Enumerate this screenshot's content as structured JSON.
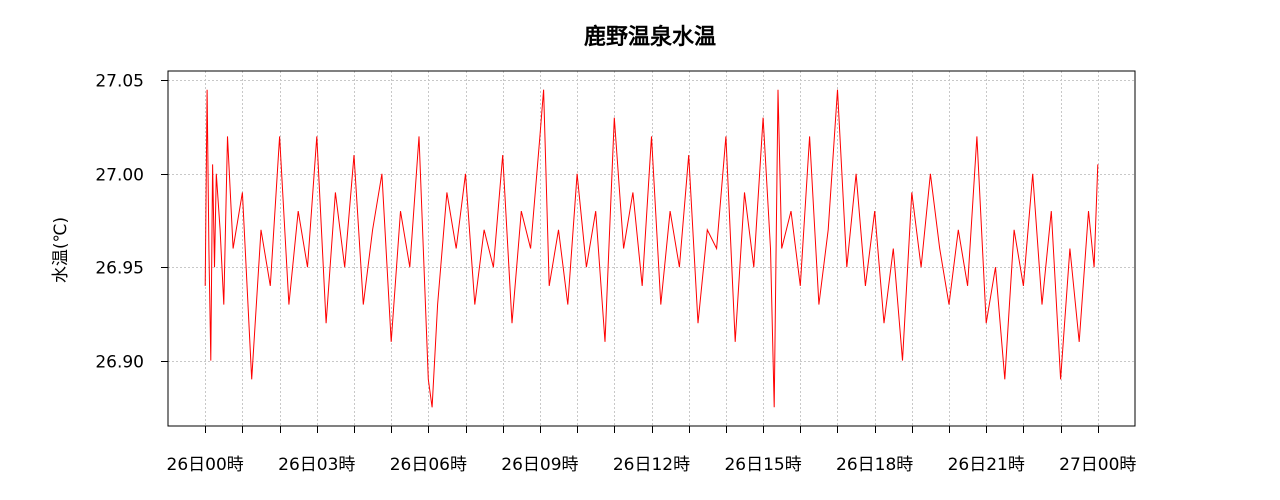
{
  "chart_data": {
    "type": "line",
    "title": "鹿野温泉水温",
    "xlabel": "",
    "ylabel": "水温(℃)",
    "ylim": [
      26.865,
      27.055
    ],
    "xlim_hours": [
      -1,
      25
    ],
    "y_ticks": [
      26.9,
      26.95,
      27.0,
      27.05
    ],
    "y_tick_labels": [
      "26.90",
      "26.95",
      "27.00",
      "27.05"
    ],
    "x_tick_hours": [
      0,
      3,
      6,
      9,
      12,
      15,
      18,
      21,
      24
    ],
    "x_tick_labels": [
      "26日00時",
      "26日03時",
      "26日06時",
      "26日09時",
      "26日12時",
      "26日15時",
      "26日18時",
      "26日21時",
      "27日00時"
    ],
    "x_minor_step_hours": 1,
    "grid": true,
    "legend": "none",
    "series": [
      {
        "color": "#ff0000",
        "x_hours": [
          0.0,
          0.05,
          0.1,
          0.15,
          0.2,
          0.25,
          0.3,
          0.4,
          0.5,
          0.6,
          0.75,
          1.0,
          1.25,
          1.5,
          1.75,
          2.0,
          2.25,
          2.5,
          2.75,
          3.0,
          3.25,
          3.5,
          3.75,
          4.0,
          4.25,
          4.5,
          4.75,
          5.0,
          5.25,
          5.5,
          5.75,
          6.0,
          6.1,
          6.25,
          6.5,
          6.75,
          7.0,
          7.25,
          7.5,
          7.75,
          8.0,
          8.25,
          8.5,
          8.75,
          9.0,
          9.1,
          9.25,
          9.5,
          9.75,
          10.0,
          10.25,
          10.5,
          10.75,
          11.0,
          11.25,
          11.5,
          11.75,
          12.0,
          12.25,
          12.5,
          12.75,
          13.0,
          13.25,
          13.5,
          13.75,
          14.0,
          14.25,
          14.5,
          14.75,
          15.0,
          15.2,
          15.3,
          15.4,
          15.5,
          15.75,
          16.0,
          16.25,
          16.5,
          16.75,
          17.0,
          17.25,
          17.5,
          17.75,
          18.0,
          18.25,
          18.5,
          18.75,
          19.0,
          19.25,
          19.5,
          19.75,
          20.0,
          20.25,
          20.5,
          20.75,
          21.0,
          21.25,
          21.5,
          21.75,
          22.0,
          22.25,
          22.5,
          22.75,
          23.0,
          23.25,
          23.5,
          23.75,
          23.9,
          24.0
        ],
        "y": [
          26.94,
          27.045,
          26.96,
          26.9,
          27.005,
          26.95,
          27.0,
          26.97,
          26.93,
          27.02,
          26.96,
          26.99,
          26.89,
          26.97,
          26.94,
          27.02,
          26.93,
          26.98,
          26.95,
          27.02,
          26.92,
          26.99,
          26.95,
          27.01,
          26.93,
          26.97,
          27.0,
          26.91,
          26.98,
          26.95,
          27.02,
          26.89,
          26.875,
          26.93,
          26.99,
          26.96,
          27.0,
          26.93,
          26.97,
          26.95,
          27.01,
          26.92,
          26.98,
          26.96,
          27.02,
          27.045,
          26.94,
          26.97,
          26.93,
          27.0,
          26.95,
          26.98,
          26.91,
          27.03,
          26.96,
          26.99,
          26.94,
          27.02,
          26.93,
          26.98,
          26.95,
          27.01,
          26.92,
          26.97,
          26.96,
          27.02,
          26.91,
          26.99,
          26.95,
          27.03,
          26.96,
          26.875,
          27.045,
          26.96,
          26.98,
          26.94,
          27.02,
          26.93,
          26.97,
          27.045,
          26.95,
          27.0,
          26.94,
          26.98,
          26.92,
          26.96,
          26.9,
          26.99,
          26.95,
          27.0,
          26.96,
          26.93,
          26.97,
          26.94,
          27.02,
          26.92,
          26.95,
          26.89,
          26.97,
          26.94,
          27.0,
          26.93,
          26.98,
          26.89,
          26.96,
          26.91,
          26.98,
          26.95,
          27.005
        ]
      }
    ]
  }
}
